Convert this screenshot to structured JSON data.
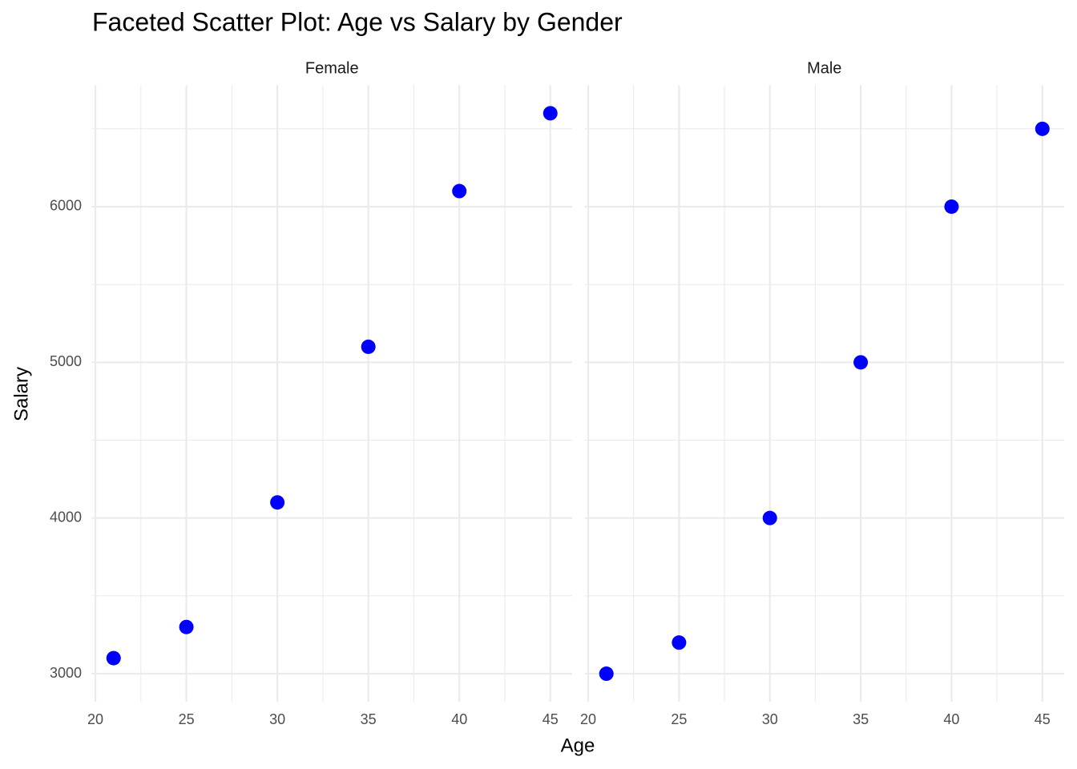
{
  "chart_data": {
    "type": "scatter",
    "title": "Faceted Scatter Plot: Age vs Salary by Gender",
    "xlabel": "Age",
    "ylabel": "Salary",
    "color": "#0000ff",
    "grid": true,
    "xlim": [
      19.8,
      46.2
    ],
    "ylim": [
      2820,
      6780
    ],
    "xticks": [
      20,
      25,
      30,
      35,
      40,
      45
    ],
    "yticks": [
      3000,
      4000,
      5000,
      6000
    ],
    "minor_xticks": [
      22.5,
      27.5,
      32.5,
      37.5,
      42.5
    ],
    "minor_yticks": [
      3500,
      4500,
      5500,
      6500
    ],
    "facets": [
      {
        "name": "Female",
        "x": [
          21,
          25,
          30,
          35,
          40,
          45
        ],
        "y": [
          3100,
          3300,
          4100,
          5100,
          6100,
          6600
        ]
      },
      {
        "name": "Male",
        "x": [
          21,
          25,
          30,
          35,
          40,
          45
        ],
        "y": [
          3000,
          3200,
          4000,
          5000,
          6000,
          6500
        ]
      }
    ]
  }
}
